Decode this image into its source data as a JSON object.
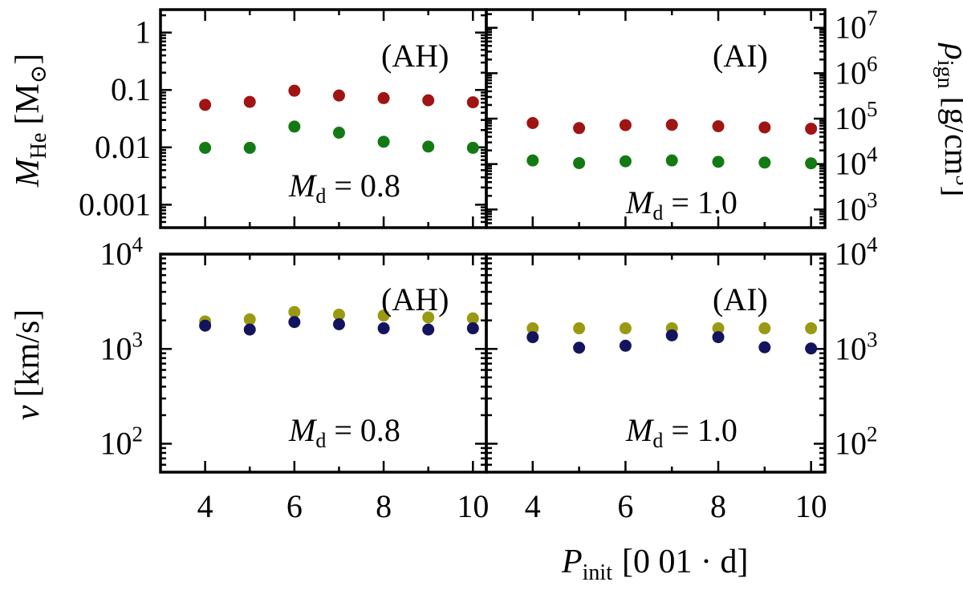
{
  "chart_data": {
    "type": "scatter",
    "x_axis": {
      "label_var": "P",
      "label_sub": "init",
      "label_unit": "[0 01 · d]",
      "xlim": [
        3,
        10.3
      ],
      "ticks": [
        4,
        6,
        8,
        10
      ],
      "tick_labels": [
        "4",
        "6",
        "8",
        "10"
      ]
    },
    "x_values": [
      4,
      5,
      6,
      7,
      8,
      9,
      10
    ],
    "rows": [
      {
        "left_axis": {
          "label_var": "M",
          "label_sub": "He",
          "label_unit_open": "[M",
          "label_unit_sym": "⊙",
          "label_unit_close": "]",
          "ylim_log10": [
            -3.4,
            0.4
          ],
          "ticks_log10": [
            -3,
            -2,
            -1,
            0
          ],
          "tick_labels": [
            "0.001",
            "0.01",
            "0.1",
            "1"
          ]
        },
        "right_axis": {
          "label_var": "ρ",
          "label_sub": "ign",
          "label_unit": "[g/cm",
          "label_unit_sup": "3",
          "label_unit_close": "]",
          "ylim_log10": [
            2.6,
            7.4
          ],
          "ticks_log10": [
            3,
            4,
            5,
            6,
            7
          ],
          "tick_base": "10",
          "tick_exps": [
            "3",
            "4",
            "5",
            "6",
            "7"
          ]
        },
        "panels": [
          {
            "label": "(AH)",
            "md_var": "M",
            "md_sub": "d",
            "md_value": "= 0.8",
            "axis": "left",
            "series": [
              {
                "name": "red",
                "color": "#a01414",
                "values": [
                  0.055,
                  0.062,
                  0.097,
                  0.08,
                  0.072,
                  0.066,
                  0.061
                ]
              },
              {
                "name": "green",
                "color": "#137a13",
                "values": [
                  0.0098,
                  0.0098,
                  0.023,
                  0.018,
                  0.0125,
                  0.0103,
                  0.0098
                ]
              }
            ]
          },
          {
            "label": "(AI)",
            "md_var": "M",
            "md_sub": "d",
            "md_value": "= 1.0",
            "axis": "right",
            "series": [
              {
                "name": "red",
                "color": "#a01414",
                "values": [
                  80000,
                  62000,
                  72000,
                  73000,
                  68000,
                  64000,
                  60000
                ]
              },
              {
                "name": "green",
                "color": "#137a13",
                "values": [
                  12000,
                  10500,
                  11500,
                  12000,
                  11200,
                  10800,
                  10400
                ]
              }
            ]
          }
        ]
      },
      {
        "left_axis": {
          "label_var": "v",
          "label_unit": "[km/s]",
          "ylim_log10": [
            1.7,
            4.0
          ],
          "ticks_log10": [
            2,
            3,
            4
          ],
          "tick_base": "10",
          "tick_exps": [
            "2",
            "3",
            "4"
          ]
        },
        "right_axis": {
          "ylim_log10": [
            1.7,
            4.0
          ],
          "ticks_log10": [
            2,
            3,
            4
          ],
          "tick_base": "10",
          "tick_exps": [
            "2",
            "3",
            "4"
          ]
        },
        "panels": [
          {
            "label": "(AH)",
            "md_var": "M",
            "md_sub": "d",
            "md_value": "= 0.8",
            "axis": "left",
            "series": [
              {
                "name": "olive",
                "color": "#9a9a12",
                "values": [
                  1950,
                  2050,
                  2450,
                  2300,
                  2250,
                  2150,
                  2100
                ]
              },
              {
                "name": "navy",
                "color": "#14145e",
                "values": [
                  1760,
                  1600,
                  1920,
                  1820,
                  1650,
                  1600,
                  1650
                ]
              }
            ]
          },
          {
            "label": "(AI)",
            "md_var": "M",
            "md_sub": "d",
            "md_value": "= 1.0",
            "axis": "left",
            "series": [
              {
                "name": "olive",
                "color": "#9a9a12",
                "values": [
                  1650,
                  1650,
                  1650,
                  1650,
                  1650,
                  1650,
                  1650
                ]
              },
              {
                "name": "navy",
                "color": "#14145e",
                "values": [
                  1330,
                  1030,
                  1080,
                  1390,
                  1330,
                  1040,
                  1010
                ]
              }
            ]
          }
        ]
      }
    ]
  }
}
